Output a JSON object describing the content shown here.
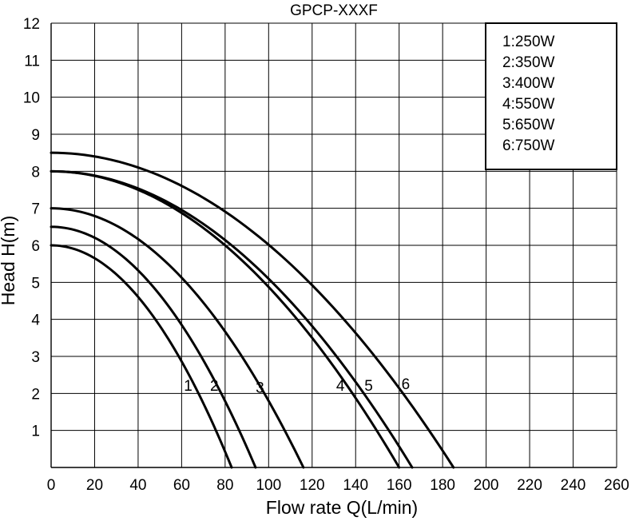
{
  "chart_data": {
    "type": "line",
    "title": "GPCP-XXXF",
    "xlabel": "Flow rate Q(L/min)",
    "ylabel": "Head H(m)",
    "xlim": [
      0,
      260
    ],
    "ylim": [
      0,
      12
    ],
    "x_ticks": [
      "0",
      "20",
      "40",
      "60",
      "80",
      "100",
      "120",
      "140",
      "160",
      "180",
      "200",
      "220",
      "240",
      "260"
    ],
    "y_ticks": [
      "1",
      "2",
      "3",
      "4",
      "5",
      "6",
      "7",
      "8",
      "9",
      "10",
      "11",
      "12"
    ],
    "grid": true,
    "legend_position": "top-right",
    "legend": [
      "1:250W",
      "2:350W",
      "3:400W",
      "4:550W",
      "5:650W",
      "6:750W"
    ],
    "series": [
      {
        "label": "1",
        "shutoff_head": 6.0,
        "max_flow": 83,
        "points": [
          [
            0,
            6.0
          ],
          [
            20,
            5.6
          ],
          [
            40,
            4.8
          ],
          [
            60,
            3.4
          ],
          [
            70,
            2.4
          ],
          [
            80,
            0.9
          ],
          [
            83,
            0
          ]
        ]
      },
      {
        "label": "2",
        "shutoff_head": 6.5,
        "max_flow": 94,
        "points": [
          [
            0,
            6.5
          ],
          [
            20,
            6.1
          ],
          [
            40,
            5.3
          ],
          [
            60,
            4.0
          ],
          [
            75,
            2.6
          ],
          [
            90,
            0.8
          ],
          [
            94,
            0
          ]
        ]
      },
      {
        "label": "3",
        "shutoff_head": 7.0,
        "max_flow": 116,
        "points": [
          [
            0,
            7.0
          ],
          [
            20,
            6.6
          ],
          [
            40,
            6.0
          ],
          [
            60,
            5.0
          ],
          [
            80,
            3.7
          ],
          [
            100,
            2.0
          ],
          [
            116,
            0
          ]
        ]
      },
      {
        "label": "4",
        "shutoff_head": 8.0,
        "max_flow": 160,
        "points": [
          [
            0,
            8.0
          ],
          [
            40,
            7.2
          ],
          [
            80,
            5.6
          ],
          [
            120,
            3.2
          ],
          [
            145,
            1.4
          ],
          [
            160,
            0
          ]
        ]
      },
      {
        "label": "5",
        "shutoff_head": 8.0,
        "max_flow": 166,
        "points": [
          [
            0,
            8.0
          ],
          [
            40,
            7.4
          ],
          [
            80,
            6.0
          ],
          [
            120,
            3.8
          ],
          [
            150,
            1.6
          ],
          [
            166,
            0
          ]
        ]
      },
      {
        "label": "6",
        "shutoff_head": 8.5,
        "max_flow": 185,
        "points": [
          [
            0,
            8.5
          ],
          [
            40,
            7.9
          ],
          [
            80,
            6.7
          ],
          [
            120,
            4.8
          ],
          [
            160,
            2.2
          ],
          [
            185,
            0
          ]
        ]
      }
    ],
    "curve_labels": [
      {
        "text": "1",
        "x": 63,
        "y": 2.2
      },
      {
        "text": "2",
        "x": 75,
        "y": 2.2
      },
      {
        "text": "3",
        "x": 96,
        "y": 2.15
      },
      {
        "text": "4",
        "x": 133,
        "y": 2.2
      },
      {
        "text": "5",
        "x": 146,
        "y": 2.2
      },
      {
        "text": "6",
        "x": 163,
        "y": 2.25
      }
    ]
  }
}
